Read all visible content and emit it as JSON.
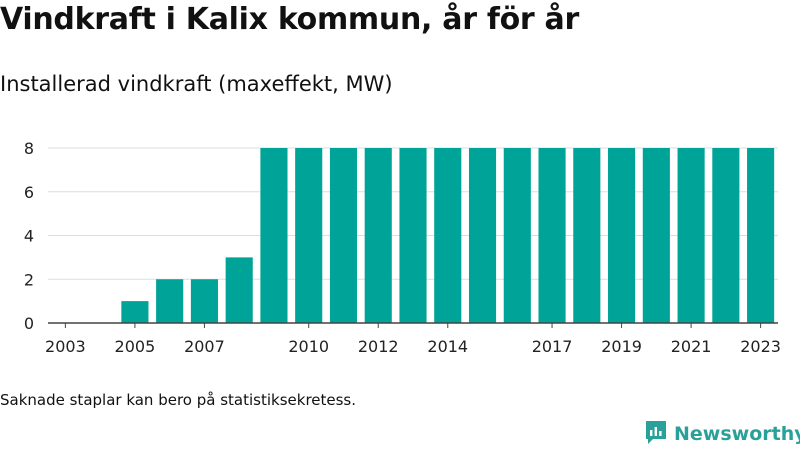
{
  "title": "Vindkraft i Kalix kommun, år för år",
  "subtitle": "Installerad vindkraft (maxeffekt, MW)",
  "footnote": "Saknade staplar kan bero på statistiksekretess.",
  "brand": {
    "name": "Newsworthy",
    "icon": "newsworthy-logo-icon"
  },
  "colors": {
    "bar": "#00a398",
    "axis": "#444444",
    "grid": "#dddddd",
    "brand": "#2aa198"
  },
  "chart_data": {
    "type": "bar",
    "title": "Vindkraft i Kalix kommun, år för år",
    "subtitle": "Installerad vindkraft (maxeffekt, MW)",
    "xlabel": "",
    "ylabel": "",
    "categories": [
      "2003",
      "2004",
      "2005",
      "2006",
      "2007",
      "2008",
      "2009",
      "2010",
      "2011",
      "2012",
      "2013",
      "2014",
      "2015",
      "2016",
      "2017",
      "2018",
      "2019",
      "2020",
      "2021",
      "2022",
      "2023"
    ],
    "values": [
      null,
      null,
      1,
      2,
      2,
      3,
      8,
      8,
      8,
      8,
      8,
      8,
      8,
      8,
      8,
      8,
      8,
      8,
      8,
      8,
      8
    ],
    "x_tick_labels": [
      "2003",
      "2005",
      "2007",
      "2010",
      "2012",
      "2014",
      "2017",
      "2019",
      "2021",
      "2023"
    ],
    "y_ticks": [
      0,
      2,
      4,
      6,
      8
    ],
    "ylim": [
      0,
      8
    ],
    "grid": true,
    "legend": "none"
  }
}
